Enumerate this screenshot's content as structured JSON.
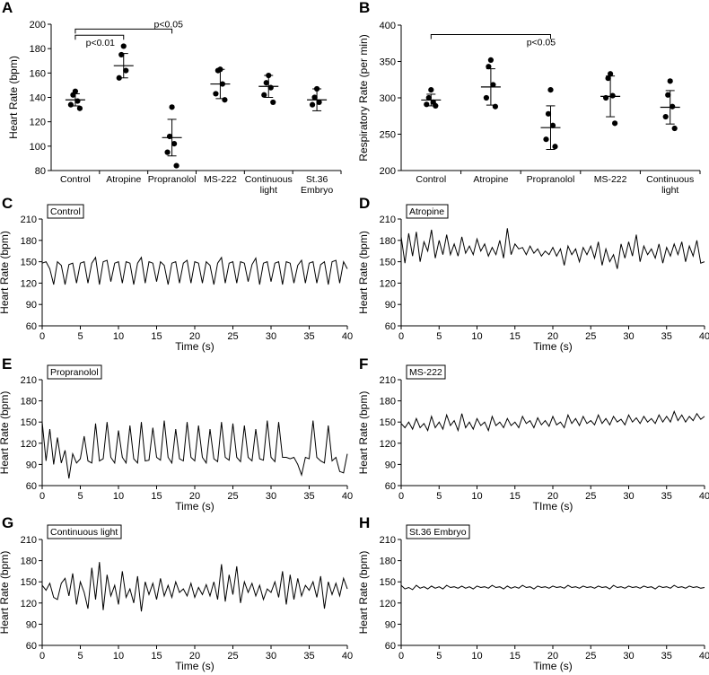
{
  "panels": {
    "A": "A",
    "B": "B",
    "C": "C",
    "D": "D",
    "E": "E",
    "F": "F",
    "G": "G",
    "H": "H"
  },
  "chart_data": [
    {
      "panel": "A",
      "type": "scatter",
      "ylabel": "Heart Rate (bpm)",
      "xlabel": "",
      "ylim": [
        80,
        200
      ],
      "yticks": [
        80,
        100,
        120,
        140,
        160,
        180,
        200
      ],
      "categories": [
        {
          "lines": [
            "Control"
          ]
        },
        {
          "lines": [
            "Atropine"
          ]
        },
        {
          "lines": [
            "Propranolol"
          ]
        },
        {
          "lines": [
            "MS-222"
          ]
        },
        {
          "lines": [
            "Continuous",
            "light"
          ]
        },
        {
          "lines": [
            "St.36",
            "Embryo"
          ]
        }
      ],
      "groups": [
        {
          "points": [
            145,
            142,
            137,
            134,
            131
          ],
          "mean": 138,
          "sd": 5
        },
        {
          "points": [
            182,
            175,
            162,
            156
          ],
          "mean": 166,
          "sd": 10
        },
        {
          "points": [
            132,
            108,
            102,
            95,
            84
          ],
          "mean": 107,
          "sd": 15
        },
        {
          "points": [
            163,
            162,
            151,
            143,
            138
          ],
          "mean": 151,
          "sd": 12
        },
        {
          "points": [
            158,
            152,
            148,
            142,
            136
          ],
          "mean": 149,
          "sd": 9
        },
        {
          "points": [
            147,
            140,
            136,
            134
          ],
          "mean": 138,
          "sd": 9
        }
      ],
      "annotations": [
        {
          "from": 0,
          "to": 2,
          "y": 196,
          "label": "p<0.05"
        },
        {
          "from": 0,
          "to": 1,
          "y": 191,
          "label": "p<0.01"
        }
      ]
    },
    {
      "panel": "B",
      "type": "scatter",
      "ylabel": "Respiratory Rate (per min)",
      "xlabel": "",
      "ylim": [
        200,
        400
      ],
      "yticks": [
        200,
        250,
        300,
        350,
        400
      ],
      "categories": [
        {
          "lines": [
            "Control"
          ]
        },
        {
          "lines": [
            "Atropine"
          ]
        },
        {
          "lines": [
            "Propranolol"
          ]
        },
        {
          "lines": [
            "MS-222"
          ]
        },
        {
          "lines": [
            "Continuous",
            "light"
          ]
        }
      ],
      "groups": [
        {
          "points": [
            311,
            300,
            294,
            291,
            289
          ],
          "mean": 297,
          "sd": 8
        },
        {
          "points": [
            352,
            343,
            318,
            300,
            288
          ],
          "mean": 315,
          "sd": 25
        },
        {
          "points": [
            311,
            278,
            262,
            243,
            233
          ],
          "mean": 259,
          "sd": 30
        },
        {
          "points": [
            333,
            327,
            303,
            300,
            265
          ],
          "mean": 302,
          "sd": 28
        },
        {
          "points": [
            323,
            304,
            288,
            274,
            258
          ],
          "mean": 287,
          "sd": 23
        }
      ],
      "annotations": [
        {
          "from": 0,
          "to": 2,
          "y": 387,
          "label": "p<0.05"
        }
      ]
    },
    {
      "panel": "C",
      "type": "line",
      "title": "Control",
      "xlabel": "Time (s)",
      "ylabel": "Heart Rate (bpm)",
      "xlim": [
        0,
        40
      ],
      "ylim": [
        60,
        210
      ],
      "xticks": [
        0,
        5,
        10,
        15,
        20,
        25,
        30,
        35,
        40
      ],
      "yticks": [
        60,
        90,
        120,
        150,
        180,
        210
      ],
      "x": [
        0,
        0.5,
        1,
        1.5,
        2,
        2.5,
        3,
        3.5,
        4,
        4.5,
        5,
        5.5,
        6,
        6.5,
        7,
        7.5,
        8,
        8.5,
        9,
        9.5,
        10,
        10.5,
        11,
        11.5,
        12,
        12.5,
        13,
        13.5,
        14,
        14.5,
        15,
        15.5,
        16,
        16.5,
        17,
        17.5,
        18,
        18.5,
        19,
        19.5,
        20,
        20.5,
        21,
        21.5,
        22,
        22.5,
        23,
        23.5,
        24,
        24.5,
        25,
        25.5,
        26,
        26.5,
        27,
        27.5,
        28,
        28.5,
        29,
        29.5,
        30,
        30.5,
        31,
        31.5,
        32,
        32.5,
        33,
        33.5,
        34,
        34.5,
        35,
        35.5,
        36,
        36.5,
        37,
        37.5,
        38,
        38.5,
        39,
        39.5,
        40
      ],
      "y": [
        148,
        150,
        140,
        118,
        150,
        145,
        118,
        146,
        148,
        120,
        148,
        150,
        120,
        148,
        156,
        118,
        150,
        152,
        122,
        148,
        150,
        120,
        150,
        148,
        118,
        148,
        156,
        120,
        150,
        148,
        122,
        150,
        145,
        118,
        148,
        150,
        120,
        148,
        152,
        120,
        150,
        148,
        120,
        150,
        145,
        118,
        148,
        156,
        120,
        148,
        150,
        120,
        150,
        148,
        122,
        146,
        155,
        118,
        148,
        150,
        122,
        148,
        150,
        118,
        150,
        148,
        120,
        145,
        152,
        120,
        148,
        150,
        120,
        146,
        150,
        118,
        150,
        152,
        120,
        150,
        140
      ]
    },
    {
      "panel": "D",
      "type": "line",
      "title": "Atropine",
      "xlabel": "Time (s)",
      "ylabel": "Heart Rate (bpm)",
      "xlim": [
        0,
        40
      ],
      "ylim": [
        60,
        210
      ],
      "xticks": [
        0,
        5,
        10,
        15,
        20,
        25,
        30,
        35,
        40
      ],
      "yticks": [
        60,
        90,
        120,
        150,
        180,
        210
      ],
      "x": [
        0,
        0.5,
        1,
        1.5,
        2,
        2.5,
        3,
        3.5,
        4,
        4.5,
        5,
        5.5,
        6,
        6.5,
        7,
        7.5,
        8,
        8.5,
        9,
        9.5,
        10,
        10.5,
        11,
        11.5,
        12,
        12.5,
        13,
        13.5,
        14,
        14.5,
        15,
        15.5,
        16,
        16.5,
        17,
        17.5,
        18,
        18.5,
        19,
        19.5,
        20,
        20.5,
        21,
        21.5,
        22,
        22.5,
        23,
        23.5,
        24,
        24.5,
        25,
        25.5,
        26,
        26.5,
        27,
        27.5,
        28,
        28.5,
        29,
        29.5,
        30,
        30.5,
        31,
        31.5,
        32,
        32.5,
        33,
        33.5,
        34,
        34.5,
        35,
        35.5,
        36,
        36.5,
        37,
        37.5,
        38,
        38.5,
        39,
        39.5,
        40
      ],
      "y": [
        185,
        148,
        190,
        158,
        192,
        150,
        178,
        165,
        195,
        155,
        180,
        160,
        188,
        160,
        175,
        158,
        185,
        162,
        172,
        160,
        182,
        165,
        175,
        158,
        170,
        160,
        180,
        155,
        197,
        160,
        175,
        168,
        170,
        160,
        172,
        162,
        168,
        158,
        165,
        160,
        170,
        158,
        168,
        145,
        172,
        160,
        168,
        150,
        170,
        160,
        172,
        155,
        178,
        145,
        168,
        150,
        160,
        140,
        175,
        155,
        178,
        158,
        188,
        150,
        172,
        160,
        168,
        155,
        175,
        148,
        170,
        158,
        175,
        160,
        178,
        150,
        172,
        158,
        180,
        148,
        150
      ]
    },
    {
      "panel": "E",
      "type": "line",
      "title": "Propranolol",
      "xlabel": "Time (s)",
      "ylabel": "Heart Rate (bpm)",
      "xlim": [
        0,
        40
      ],
      "ylim": [
        60,
        210
      ],
      "xticks": [
        0,
        5,
        10,
        15,
        20,
        25,
        30,
        35,
        40
      ],
      "yticks": [
        60,
        90,
        120,
        150,
        180,
        210
      ],
      "x": [
        0,
        0.5,
        1,
        1.5,
        2,
        2.5,
        3,
        3.5,
        4,
        4.5,
        5,
        5.5,
        6,
        6.5,
        7,
        7.5,
        8,
        8.5,
        9,
        9.5,
        10,
        10.5,
        11,
        11.5,
        12,
        12.5,
        13,
        13.5,
        14,
        14.5,
        15,
        15.5,
        16,
        16.5,
        17,
        17.5,
        18,
        18.5,
        19,
        19.5,
        20,
        20.5,
        21,
        21.5,
        22,
        22.5,
        23,
        23.5,
        24,
        24.5,
        25,
        25.5,
        26,
        26.5,
        27,
        27.5,
        28,
        28.5,
        29,
        29.5,
        30,
        30.5,
        31,
        31.5,
        32,
        32.5,
        33,
        33.5,
        34,
        34.5,
        35,
        35.5,
        36,
        36.5,
        37,
        37.5,
        38,
        38.5,
        39,
        39.5,
        40
      ],
      "y": [
        150,
        95,
        140,
        90,
        128,
        92,
        110,
        70,
        105,
        92,
        98,
        130,
        95,
        92,
        148,
        95,
        98,
        150,
        100,
        92,
        138,
        100,
        92,
        145,
        98,
        92,
        150,
        95,
        96,
        142,
        100,
        96,
        152,
        100,
        92,
        140,
        98,
        95,
        150,
        100,
        95,
        145,
        100,
        92,
        140,
        98,
        94,
        150,
        100,
        96,
        148,
        100,
        94,
        145,
        100,
        95,
        140,
        98,
        96,
        152,
        100,
        94,
        150,
        100,
        100,
        98,
        100,
        90,
        75,
        100,
        98,
        152,
        100,
        95,
        92,
        145,
        95,
        100,
        80,
        78,
        105
      ]
    },
    {
      "panel": "F",
      "type": "line",
      "title": "MS-222",
      "xlabel": "TIme (s)",
      "ylabel": "Heart Rate (bpm)",
      "xlim": [
        0,
        40
      ],
      "ylim": [
        60,
        210
      ],
      "xticks": [
        0,
        5,
        10,
        15,
        20,
        25,
        30,
        35,
        40
      ],
      "yticks": [
        60,
        90,
        120,
        150,
        180,
        210
      ],
      "x": [
        0,
        0.5,
        1,
        1.5,
        2,
        2.5,
        3,
        3.5,
        4,
        4.5,
        5,
        5.5,
        6,
        6.5,
        7,
        7.5,
        8,
        8.5,
        9,
        9.5,
        10,
        10.5,
        11,
        11.5,
        12,
        12.5,
        13,
        13.5,
        14,
        14.5,
        15,
        15.5,
        16,
        16.5,
        17,
        17.5,
        18,
        18.5,
        19,
        19.5,
        20,
        20.5,
        21,
        21.5,
        22,
        22.5,
        23,
        23.5,
        24,
        24.5,
        25,
        25.5,
        26,
        26.5,
        27,
        27.5,
        28,
        28.5,
        29,
        29.5,
        30,
        30.5,
        31,
        31.5,
        32,
        32.5,
        33,
        33.5,
        34,
        34.5,
        35,
        35.5,
        36,
        36.5,
        37,
        37.5,
        38,
        38.5,
        39,
        39.5,
        40
      ],
      "y": [
        148,
        142,
        150,
        140,
        155,
        142,
        148,
        138,
        158,
        142,
        150,
        140,
        160,
        145,
        152,
        138,
        162,
        142,
        150,
        140,
        155,
        145,
        150,
        138,
        158,
        145,
        150,
        142,
        155,
        145,
        150,
        142,
        158,
        148,
        152,
        142,
        156,
        146,
        152,
        144,
        158,
        146,
        150,
        142,
        160,
        148,
        155,
        145,
        158,
        148,
        152,
        146,
        160,
        148,
        155,
        146,
        158,
        150,
        154,
        146,
        160,
        150,
        156,
        148,
        158,
        150,
        155,
        148,
        160,
        150,
        158,
        150,
        165,
        152,
        160,
        150,
        158,
        152,
        162,
        154,
        158
      ]
    },
    {
      "panel": "G",
      "type": "line",
      "title": "Continuous light",
      "xlabel": "Time (s)",
      "ylabel": "Heart Rate (bpm)",
      "xlim": [
        0,
        40
      ],
      "ylim": [
        60,
        210
      ],
      "xticks": [
        0,
        5,
        10,
        15,
        20,
        25,
        30,
        35,
        40
      ],
      "yticks": [
        60,
        90,
        120,
        150,
        180,
        210
      ],
      "x": [
        0,
        0.5,
        1,
        1.5,
        2,
        2.5,
        3,
        3.5,
        4,
        4.5,
        5,
        5.5,
        6,
        6.5,
        7,
        7.5,
        8,
        8.5,
        9,
        9.5,
        10,
        10.5,
        11,
        11.5,
        12,
        12.5,
        13,
        13.5,
        14,
        14.5,
        15,
        15.5,
        16,
        16.5,
        17,
        17.5,
        18,
        18.5,
        19,
        19.5,
        20,
        20.5,
        21,
        21.5,
        22,
        22.5,
        23,
        23.5,
        24,
        24.5,
        25,
        25.5,
        26,
        26.5,
        27,
        27.5,
        28,
        28.5,
        29,
        29.5,
        30,
        30.5,
        31,
        31.5,
        32,
        32.5,
        33,
        33.5,
        34,
        34.5,
        35,
        35.5,
        36,
        36.5,
        37,
        37.5,
        38,
        38.5,
        39,
        39.5,
        40
      ],
      "y": [
        145,
        138,
        148,
        128,
        125,
        148,
        155,
        130,
        162,
        118,
        150,
        135,
        112,
        170,
        125,
        178,
        110,
        160,
        130,
        145,
        118,
        165,
        128,
        140,
        120,
        158,
        108,
        150,
        132,
        148,
        125,
        155,
        130,
        145,
        128,
        150,
        135,
        140,
        130,
        148,
        128,
        142,
        132,
        146,
        130,
        150,
        125,
        175,
        122,
        160,
        132,
        172,
        120,
        150,
        135,
        148,
        130,
        145,
        125,
        140,
        135,
        150,
        128,
        165,
        118,
        160,
        125,
        155,
        130,
        145,
        138,
        150,
        128,
        158,
        112,
        150,
        132,
        148,
        130,
        155,
        140
      ]
    },
    {
      "panel": "H",
      "type": "line",
      "title": "St.36 Embryo",
      "xlabel": "Time (s)",
      "ylabel": "Heart Rate (bpm)",
      "xlim": [
        0,
        40
      ],
      "ylim": [
        60,
        210
      ],
      "xticks": [
        0,
        5,
        10,
        15,
        20,
        25,
        30,
        35,
        40
      ],
      "yticks": [
        60,
        90,
        120,
        150,
        180,
        210
      ],
      "x": [
        0,
        0.5,
        1,
        1.5,
        2,
        2.5,
        3,
        3.5,
        4,
        4.5,
        5,
        5.5,
        6,
        6.5,
        7,
        7.5,
        8,
        8.5,
        9,
        9.5,
        10,
        10.5,
        11,
        11.5,
        12,
        12.5,
        13,
        13.5,
        14,
        14.5,
        15,
        15.5,
        16,
        16.5,
        17,
        17.5,
        18,
        18.5,
        19,
        19.5,
        20,
        20.5,
        21,
        21.5,
        22,
        22.5,
        23,
        23.5,
        24,
        24.5,
        25,
        25.5,
        26,
        26.5,
        27,
        27.5,
        28,
        28.5,
        29,
        29.5,
        30,
        30.5,
        31,
        31.5,
        32,
        32.5,
        33,
        33.5,
        34,
        34.5,
        35,
        35.5,
        36,
        36.5,
        37,
        37.5,
        38,
        38.5,
        39,
        39.5,
        40
      ],
      "y": [
        145,
        140,
        142,
        139,
        145,
        141,
        143,
        140,
        144,
        141,
        143,
        140,
        145,
        142,
        143,
        141,
        144,
        141,
        143,
        140,
        144,
        142,
        143,
        141,
        145,
        142,
        143,
        140,
        144,
        141,
        143,
        141,
        145,
        142,
        143,
        140,
        144,
        142,
        143,
        141,
        144,
        142,
        143,
        141,
        145,
        142,
        143,
        141,
        144,
        142,
        143,
        141,
        144,
        142,
        143,
        140,
        145,
        142,
        143,
        141,
        144,
        142,
        143,
        141,
        144,
        142,
        143,
        140,
        144,
        142,
        143,
        141,
        145,
        142,
        143,
        141,
        144,
        142,
        143,
        141,
        142
      ]
    }
  ]
}
